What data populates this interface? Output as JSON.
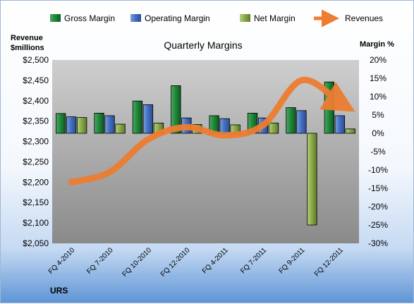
{
  "chart_data": {
    "type": "bar",
    "title": "Quarterly Margins",
    "categories": [
      "FQ 4-2010",
      "FQ 7-2010",
      "FQ 10-2010",
      "FQ 12-2010",
      "FQ 4-2011",
      "FQ 7-2011",
      "FQ 9-2011",
      "FQ 12-2011"
    ],
    "series": [
      {
        "name": "Gross Margin",
        "type": "bar",
        "axis": "right",
        "color": "#1f8a3a",
        "values": [
          5.4,
          5.5,
          8.8,
          13.0,
          4.8,
          5.5,
          7.0,
          14.0
        ]
      },
      {
        "name": "Operating Margin",
        "type": "bar",
        "axis": "right",
        "color": "#4472c4",
        "values": [
          4.5,
          4.8,
          7.8,
          4.2,
          4.0,
          4.2,
          6.2,
          4.8
        ]
      },
      {
        "name": "Net Margin",
        "type": "bar",
        "axis": "right",
        "color": "#8bab4a",
        "values": [
          4.3,
          2.5,
          2.8,
          2.4,
          2.3,
          2.8,
          -25.0,
          1.2
        ]
      },
      {
        "name": "Revenues",
        "type": "line",
        "axis": "left",
        "color": "#ed7d31",
        "values": [
          2200,
          2225,
          2305,
          2335,
          2315,
          2340,
          2450,
          2395
        ]
      }
    ],
    "left_axis": {
      "label_line1": "Revenue",
      "label_line2": "$millions",
      "min": 2050,
      "max": 2500,
      "step": 50,
      "ticks": [
        "$2,050",
        "$2,100",
        "$2,150",
        "$2,200",
        "$2,250",
        "$2,300",
        "$2,350",
        "$2,400",
        "$2,450",
        "$2,500"
      ]
    },
    "right_axis": {
      "label": "Margin %",
      "min": -30,
      "max": 20,
      "step": 5,
      "ticks": [
        "-30%",
        "-25%",
        "-20%",
        "-15%",
        "-10%",
        "-5%",
        "0%",
        "5%",
        "10%",
        "15%",
        "20%"
      ]
    },
    "legend_position": "top",
    "grid": false,
    "footer_label": "URS"
  }
}
